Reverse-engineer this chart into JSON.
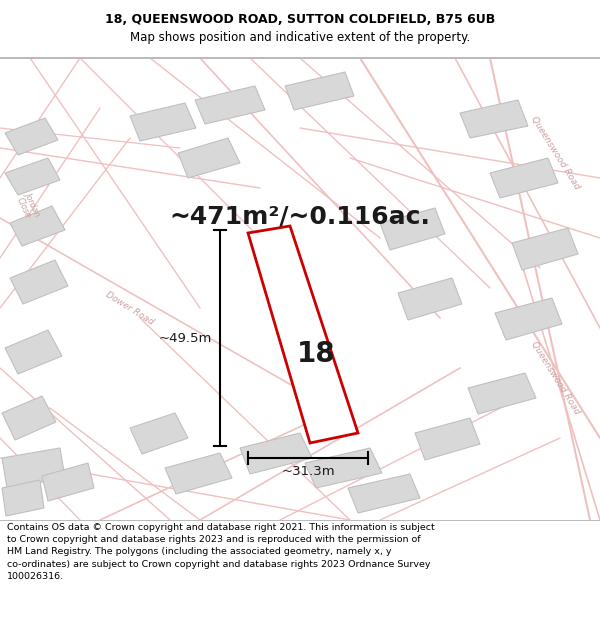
{
  "title_line1": "18, QUEENSWOOD ROAD, SUTTON COLDFIELD, B75 6UB",
  "title_line2": "Map shows position and indicative extent of the property.",
  "area_text": "~471m²/~0.116ac.",
  "property_number": "18",
  "dim_width": "~31.3m",
  "dim_height": "~49.5m",
  "footer_lines": [
    "Contains OS data © Crown copyright and database right 2021. This information is subject to Crown copyright and database rights 2023 and is reproduced with the permission of",
    "HM Land Registry. The polygons (including the associated geometry, namely x, y co-ordinates) are subject to Crown copyright and database rights 2023 Ordnance Survey",
    "100026316."
  ],
  "map_bg": "#f8f6f6",
  "road_color": "#f0c0c0",
  "road_lw_main": 1.2,
  "block_color": "#d8d8d8",
  "block_edge": "#cccccc",
  "highlight_color": "#cc0000",
  "highlight_fill": "#ffffff",
  "text_dark": "#1a1a1a",
  "road_label_color": "#c8a0a0",
  "title_fontsize": 9.0,
  "subtitle_fontsize": 8.5,
  "area_fontsize": 18,
  "propnum_fontsize": 20,
  "dim_fontsize": 9.5,
  "footer_fontsize": 6.8
}
